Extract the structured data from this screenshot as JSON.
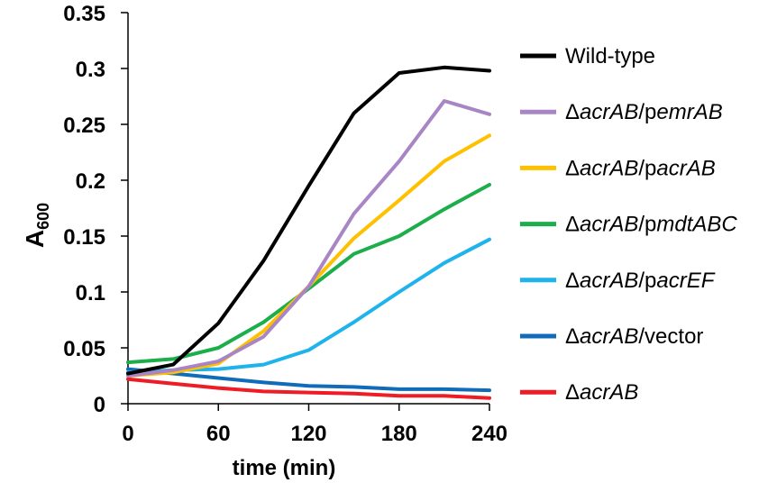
{
  "chart_data": {
    "type": "line",
    "title": "",
    "xlabel": "time (min)",
    "ylabel": "A600",
    "ylabel_main": "A",
    "ylabel_sub": "600",
    "xlim": [
      0,
      240
    ],
    "ylim": [
      0,
      0.35
    ],
    "xticks": [
      0,
      60,
      120,
      180,
      240
    ],
    "xtick_labels": [
      "0",
      "60",
      "120",
      "180",
      "240"
    ],
    "yticks": [
      0,
      0.05,
      0.1,
      0.15,
      0.2,
      0.25,
      0.3,
      0.35
    ],
    "ytick_labels": [
      "0",
      "0.05",
      "0.1",
      "0.15",
      "0.2",
      "0.25",
      "0.3",
      "0.35"
    ],
    "grid": false,
    "legend_position": "right",
    "x": [
      0,
      30,
      60,
      90,
      120,
      150,
      180,
      210,
      240
    ],
    "series": [
      {
        "name": "Wild-type",
        "color": "#000000",
        "label_parts": [
          {
            "t": "Wild-type",
            "i": false
          }
        ],
        "values": [
          0.027,
          0.035,
          0.072,
          0.128,
          0.195,
          0.26,
          0.296,
          0.301,
          0.298
        ]
      },
      {
        "name": "ΔacrAB/pemrAB",
        "color": "#a885c4",
        "label_parts": [
          {
            "t": "Δ",
            "i": false
          },
          {
            "t": "acrAB",
            "i": true
          },
          {
            "t": "/p",
            "i": false
          },
          {
            "t": "emrAB",
            "i": true
          }
        ],
        "values": [
          0.025,
          0.03,
          0.038,
          0.06,
          0.105,
          0.17,
          0.217,
          0.271,
          0.259
        ]
      },
      {
        "name": "ΔacrAB/pacrAB",
        "color": "#ffc000",
        "label_parts": [
          {
            "t": "Δ",
            "i": false
          },
          {
            "t": "acrAB",
            "i": true
          },
          {
            "t": "/p",
            "i": false
          },
          {
            "t": "acrAB",
            "i": true
          }
        ],
        "values": [
          0.025,
          0.028,
          0.036,
          0.065,
          0.105,
          0.148,
          0.182,
          0.217,
          0.24
        ]
      },
      {
        "name": "ΔacrAB/pmdtABC",
        "color": "#1bae4a",
        "label_parts": [
          {
            "t": "Δ",
            "i": false
          },
          {
            "t": "acrAB",
            "i": true
          },
          {
            "t": "/p",
            "i": false
          },
          {
            "t": "mdtABC",
            "i": true
          }
        ],
        "values": [
          0.037,
          0.04,
          0.05,
          0.073,
          0.103,
          0.134,
          0.15,
          0.174,
          0.196
        ]
      },
      {
        "name": "ΔacrAB/pacrEF",
        "color": "#1fb3ec",
        "label_parts": [
          {
            "t": "Δ",
            "i": false
          },
          {
            "t": "acrAB",
            "i": true
          },
          {
            "t": "/p",
            "i": false
          },
          {
            "t": "acrEF",
            "i": true
          }
        ],
        "values": [
          0.028,
          0.03,
          0.031,
          0.035,
          0.048,
          0.073,
          0.1,
          0.126,
          0.147
        ]
      },
      {
        "name": "ΔacrAB/vector",
        "color": "#106cb8",
        "label_parts": [
          {
            "t": "Δ",
            "i": false
          },
          {
            "t": "acrAB",
            "i": true
          },
          {
            "t": "/vector",
            "i": false
          }
        ],
        "values": [
          0.031,
          0.027,
          0.023,
          0.019,
          0.016,
          0.015,
          0.013,
          0.013,
          0.012
        ]
      },
      {
        "name": "ΔacrAB",
        "color": "#ee1c25",
        "label_parts": [
          {
            "t": "Δ",
            "i": false
          },
          {
            "t": "acrAB",
            "i": true
          }
        ],
        "values": [
          0.022,
          0.018,
          0.014,
          0.011,
          0.01,
          0.009,
          0.007,
          0.007,
          0.005
        ]
      }
    ]
  }
}
